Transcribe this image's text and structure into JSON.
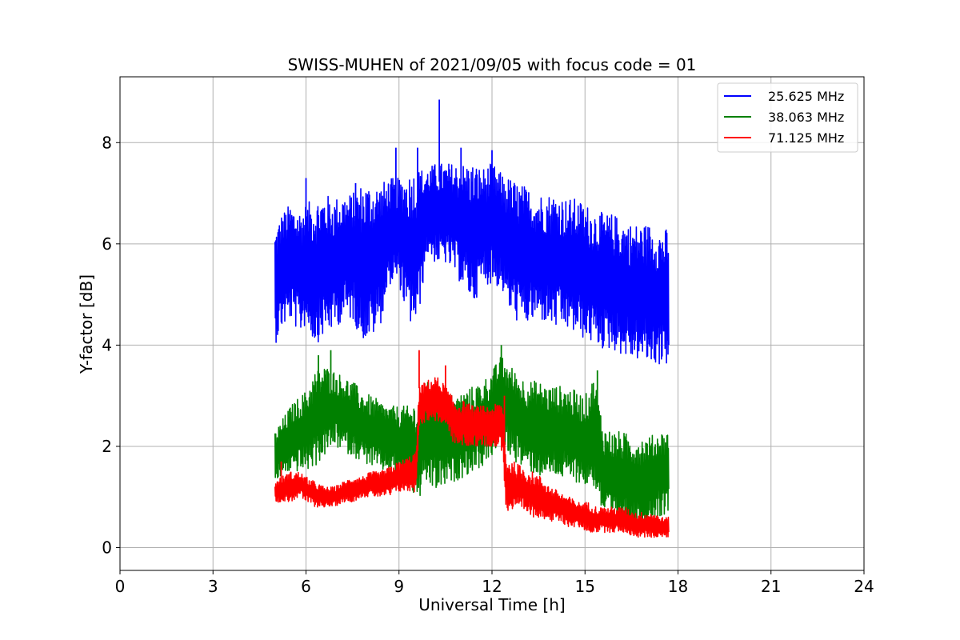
{
  "chart_data": {
    "type": "line",
    "title": "SWISS-MUHEN of 2021/09/05 with focus code = 01",
    "xlabel": "Universal Time [h]",
    "ylabel": "Y-factor [dB]",
    "xlim": [
      0,
      24
    ],
    "ylim": [
      -0.45,
      9.3
    ],
    "xticks": [
      0,
      3,
      6,
      9,
      12,
      15,
      18,
      21,
      24
    ],
    "yticks": [
      0,
      2,
      4,
      6,
      8
    ],
    "grid": true,
    "legend_position": "top-right",
    "series": [
      {
        "name": "25.625 MHz",
        "color": "#0000ff",
        "x": [
          5.0,
          5.2,
          5.5,
          5.8,
          6.0,
          6.3,
          6.6,
          6.9,
          7.2,
          7.5,
          7.8,
          8.1,
          8.4,
          8.7,
          9.0,
          9.3,
          9.6,
          9.9,
          10.2,
          10.5,
          10.8,
          11.1,
          11.4,
          11.7,
          12.0,
          12.3,
          12.6,
          12.9,
          13.2,
          13.5,
          13.8,
          14.1,
          14.4,
          14.7,
          15.0,
          15.3,
          15.6,
          15.9,
          16.2,
          16.5,
          16.8,
          17.1,
          17.4,
          17.7
        ],
        "lower": [
          4.0,
          4.3,
          4.5,
          4.2,
          4.4,
          4.0,
          4.2,
          4.3,
          4.5,
          4.5,
          4.1,
          4.1,
          4.4,
          5.2,
          5.2,
          4.4,
          4.4,
          5.8,
          5.6,
          5.6,
          5.4,
          5.1,
          4.8,
          5.2,
          5.2,
          5.1,
          4.6,
          4.4,
          4.4,
          4.5,
          4.4,
          4.3,
          4.3,
          4.2,
          4.1,
          4.0,
          3.9,
          3.9,
          3.8,
          3.7,
          3.7,
          3.6,
          3.6,
          3.6
        ],
        "upper": [
          6.3,
          6.6,
          6.8,
          6.7,
          6.8,
          6.9,
          7.0,
          6.9,
          7.0,
          7.0,
          7.2,
          7.2,
          7.2,
          7.3,
          7.3,
          7.4,
          7.5,
          7.5,
          7.6,
          7.6,
          7.6,
          7.6,
          7.6,
          7.5,
          7.6,
          7.4,
          7.3,
          7.2,
          7.1,
          7.0,
          7.0,
          7.0,
          6.9,
          6.9,
          6.8,
          6.7,
          6.6,
          6.6,
          6.5,
          6.4,
          6.4,
          6.4,
          6.3,
          6.3
        ],
        "spikes": [
          [
            10.3,
            8.85
          ],
          [
            9.6,
            7.9
          ],
          [
            8.9,
            7.9
          ],
          [
            11.0,
            7.9
          ],
          [
            12.0,
            7.85
          ],
          [
            7.6,
            7.2
          ],
          [
            6.0,
            7.3
          ]
        ]
      },
      {
        "name": "38.063 MHz",
        "color": "#008000",
        "x": [
          5.0,
          5.2,
          5.5,
          5.8,
          6.0,
          6.3,
          6.6,
          6.9,
          7.2,
          7.5,
          7.8,
          8.1,
          8.4,
          8.7,
          9.0,
          9.3,
          9.6,
          9.9,
          10.2,
          10.5,
          10.8,
          11.1,
          11.4,
          11.7,
          12.0,
          12.3,
          12.6,
          12.9,
          13.2,
          13.5,
          13.8,
          14.1,
          14.4,
          14.7,
          15.0,
          15.3,
          15.6,
          15.9,
          16.2,
          16.5,
          16.8,
          17.1,
          17.4,
          17.7
        ],
        "lower": [
          1.2,
          1.4,
          1.5,
          1.5,
          1.5,
          1.6,
          1.8,
          2.0,
          1.9,
          1.8,
          1.7,
          1.6,
          1.5,
          1.5,
          1.4,
          1.2,
          0.9,
          1.2,
          1.1,
          1.2,
          1.3,
          1.4,
          1.5,
          1.6,
          1.8,
          2.0,
          1.8,
          1.6,
          1.5,
          1.4,
          1.4,
          1.4,
          1.3,
          1.3,
          1.2,
          1.2,
          0.6,
          0.5,
          0.4,
          0.4,
          0.4,
          0.5,
          0.6,
          0.7
        ],
        "upper": [
          2.3,
          2.5,
          2.8,
          3.0,
          3.1,
          3.5,
          3.6,
          3.5,
          3.4,
          3.3,
          3.1,
          3.0,
          2.9,
          2.8,
          2.8,
          2.8,
          2.9,
          3.3,
          3.2,
          3.1,
          3.0,
          3.1,
          3.2,
          3.3,
          3.5,
          3.8,
          3.6,
          3.4,
          3.3,
          3.3,
          3.2,
          3.2,
          3.2,
          3.1,
          3.0,
          3.4,
          2.4,
          2.3,
          2.3,
          2.2,
          2.2,
          2.2,
          2.3,
          2.3
        ],
        "spikes": [
          [
            12.3,
            4.0
          ],
          [
            6.4,
            3.8
          ],
          [
            6.8,
            3.9
          ],
          [
            15.4,
            3.5
          ]
        ]
      },
      {
        "name": "71.125 MHz",
        "color": "#ff0000",
        "x": [
          5.0,
          5.2,
          5.5,
          5.8,
          6.0,
          6.3,
          6.6,
          6.9,
          7.2,
          7.5,
          7.8,
          8.1,
          8.4,
          8.7,
          9.0,
          9.3,
          9.55,
          9.65,
          9.9,
          10.2,
          10.5,
          10.8,
          11.1,
          11.4,
          11.7,
          12.0,
          12.35,
          12.45,
          12.7,
          13.0,
          13.3,
          13.6,
          13.9,
          14.2,
          14.5,
          14.8,
          15.1,
          15.4,
          15.7,
          16.0,
          16.3,
          16.6,
          16.9,
          17.2,
          17.5,
          17.7
        ],
        "lower": [
          0.9,
          0.9,
          0.9,
          1.0,
          0.9,
          0.8,
          0.8,
          0.8,
          0.9,
          0.9,
          1.0,
          1.0,
          1.0,
          1.0,
          1.1,
          1.1,
          1.1,
          2.4,
          2.5,
          2.5,
          2.4,
          2.0,
          2.0,
          2.0,
          2.0,
          2.0,
          1.9,
          0.7,
          0.7,
          0.7,
          0.6,
          0.6,
          0.5,
          0.5,
          0.4,
          0.4,
          0.3,
          0.3,
          0.3,
          0.3,
          0.3,
          0.2,
          0.2,
          0.2,
          0.2,
          0.2
        ],
        "upper": [
          1.3,
          1.4,
          1.5,
          1.5,
          1.4,
          1.3,
          1.2,
          1.2,
          1.3,
          1.4,
          1.4,
          1.5,
          1.5,
          1.6,
          1.7,
          1.8,
          1.9,
          3.2,
          3.3,
          3.4,
          3.2,
          2.9,
          2.9,
          2.8,
          2.8,
          2.8,
          2.9,
          1.8,
          1.7,
          1.6,
          1.5,
          1.4,
          1.2,
          1.1,
          1.0,
          0.9,
          0.9,
          0.8,
          0.8,
          0.8,
          0.8,
          0.7,
          0.7,
          0.7,
          0.6,
          0.6
        ],
        "spikes": [
          [
            9.65,
            3.9
          ],
          [
            10.5,
            3.6
          ],
          [
            12.4,
            3.0
          ],
          [
            5.2,
            1.7
          ]
        ]
      }
    ]
  }
}
